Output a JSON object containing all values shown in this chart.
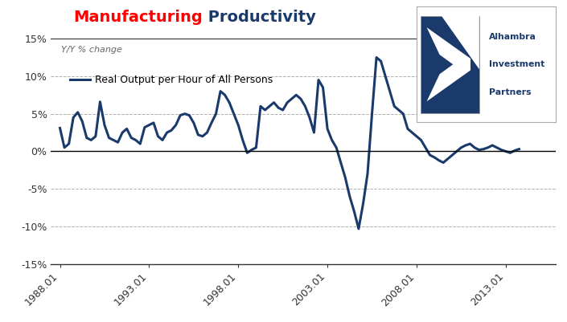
{
  "title_red": "Manufacturing",
  "title_blue": " Productivity",
  "subtitle": "Y/Y % change",
  "legend_label": "Real Output per Hour of All Persons",
  "line_color": "#1a3a6b",
  "line_width": 2.2,
  "background_color": "#ffffff",
  "grid_color": "#b0b0b0",
  "ylim": [
    -15,
    15
  ],
  "yticks": [
    -15,
    -10,
    -5,
    0,
    5,
    10,
    15
  ],
  "ytick_labels": [
    "-15%",
    "-10%",
    "-5%",
    "0%",
    "5%",
    "10%",
    "15%"
  ],
  "xtick_labels": [
    "1988.01",
    "1993.01",
    "1998.01",
    "2003.01",
    "2008.01",
    "2013.01"
  ],
  "xtick_positions": [
    1988,
    1993,
    1998,
    2003,
    2008,
    2013
  ],
  "xlim": [
    1987.5,
    2015.8
  ],
  "start_year": 1988,
  "data": [
    3.1,
    0.5,
    1.0,
    4.5,
    5.2,
    4.0,
    1.8,
    1.5,
    2.0,
    6.6,
    3.5,
    1.8,
    1.5,
    1.2,
    2.5,
    3.0,
    1.8,
    1.5,
    1.0,
    3.2,
    3.5,
    3.8,
    2.0,
    1.5,
    2.5,
    2.8,
    3.5,
    4.8,
    5.0,
    4.8,
    3.8,
    2.2,
    2.0,
    2.5,
    3.8,
    5.0,
    8.0,
    7.5,
    6.5,
    5.0,
    3.5,
    1.5,
    -0.2,
    0.2,
    0.5,
    6.0,
    5.5,
    6.0,
    6.5,
    5.8,
    5.5,
    6.5,
    7.0,
    7.5,
    7.0,
    6.0,
    4.5,
    2.5,
    9.5,
    8.5,
    3.0,
    1.5,
    0.5,
    -1.5,
    -3.5,
    -6.0,
    -8.0,
    -10.3,
    -7.0,
    -3.0,
    5.0,
    12.5,
    12.0,
    10.0,
    8.0,
    6.0,
    5.5,
    5.0,
    3.0,
    2.5,
    2.0,
    1.5,
    0.5,
    -0.5,
    -0.8,
    -1.2,
    -1.5,
    -1.0,
    -0.5,
    0.0,
    0.5,
    0.8,
    1.0,
    0.5,
    0.2,
    0.3,
    0.5,
    0.8,
    0.5,
    0.2,
    0.0,
    -0.2,
    0.1,
    0.3
  ],
  "logo_box_color": "#ffffff",
  "logo_border_color": "#aaaaaa",
  "logo_dark_color": "#1a3a6b",
  "logo_text_color": "#1a3a6b",
  "title_fontsize": 14,
  "subtitle_fontsize": 8,
  "legend_fontsize": 9,
  "tick_fontsize": 9
}
